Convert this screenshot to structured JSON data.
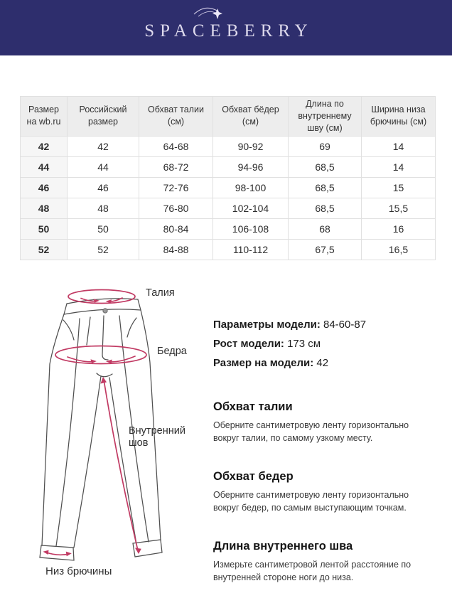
{
  "brand": {
    "logo_text": "SPACEBERRY"
  },
  "colors": {
    "header_navy": "#2e2e6d",
    "accent_pink": "#c13a63",
    "table_header_bg": "#ededed"
  },
  "size_table": {
    "columns": [
      "Размер на wb.ru",
      "Российский размер",
      "Обхват талии (см)",
      "Обхват бёдер (см)",
      "Длина по внутреннему шву (см)",
      "Ширина низа брючины (см)"
    ],
    "rows": [
      [
        "42",
        "42",
        "64-68",
        "90-92",
        "69",
        "14"
      ],
      [
        "44",
        "44",
        "68-72",
        "94-96",
        "68,5",
        "14"
      ],
      [
        "46",
        "46",
        "72-76",
        "98-100",
        "68,5",
        "15"
      ],
      [
        "48",
        "48",
        "76-80",
        "102-104",
        "68,5",
        "15,5"
      ],
      [
        "50",
        "50",
        "80-84",
        "106-108",
        "68",
        "16"
      ],
      [
        "52",
        "52",
        "84-88",
        "110-112",
        "67,5",
        "16,5"
      ]
    ]
  },
  "diagram": {
    "labels": {
      "waist": "Талия",
      "hips": "Бедра",
      "inner_seam": "Внутренний шов",
      "leg_bottom": "Низ брючины"
    }
  },
  "model_info": [
    {
      "label": "Параметры модели:",
      "value": "84-60-87"
    },
    {
      "label": "Рост модели:",
      "value": "173 см"
    },
    {
      "label": "Размер на модели:",
      "value": "42"
    }
  ],
  "measure_guide": [
    {
      "title": "Обхват талии",
      "text": "Оберните сантиметровую ленту горизонтально вокруг талии, по самому узкому месту."
    },
    {
      "title": "Обхват бедер",
      "text": "Оберните сантиметровую ленту горизонтально вокруг бедер, по самым выступающим точкам."
    },
    {
      "title": "Длина внутреннего шва",
      "text": "Измерьте сантиметровой лентой расстояние по внутренней стороне ноги до низа."
    }
  ]
}
